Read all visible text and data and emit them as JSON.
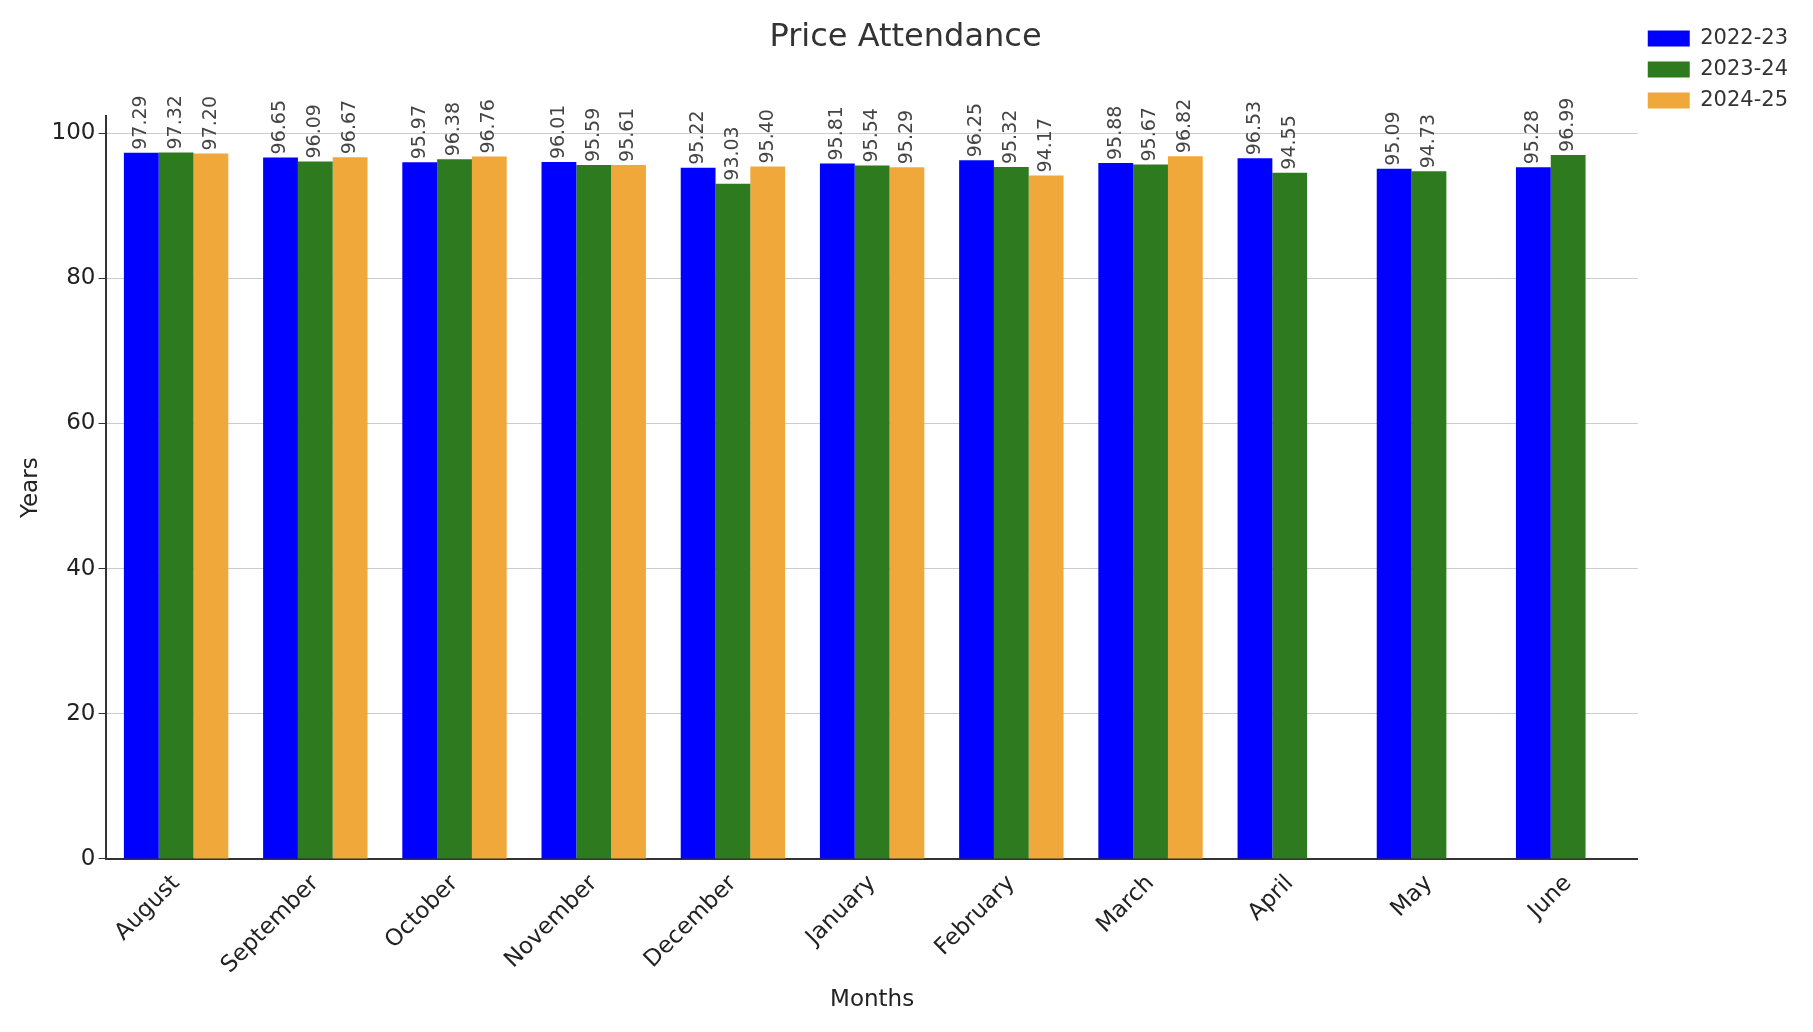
{
  "chart_data": {
    "type": "bar",
    "title": "Price Attendance",
    "xlabel": "Months",
    "ylabel": "Years",
    "categories": [
      "August",
      "September",
      "October",
      "November",
      "December",
      "January",
      "February",
      "March",
      "April",
      "May",
      "June"
    ],
    "series": [
      {
        "name": "2022-23",
        "color": "#0000ff",
        "values": [
          97.29,
          96.65,
          95.97,
          96.01,
          95.22,
          95.81,
          96.25,
          95.88,
          96.53,
          95.09,
          95.28
        ],
        "value_labels": [
          "97.29",
          "96.65",
          "95.97",
          "96.01",
          "95.22",
          "95.81",
          "96.25",
          "95.88",
          "96.53",
          "95.09",
          "95.28"
        ]
      },
      {
        "name": "2023-24",
        "color": "#2e7a1e",
        "values": [
          97.32,
          96.09,
          96.38,
          95.59,
          93.03,
          95.54,
          95.32,
          95.67,
          94.55,
          94.73,
          96.99
        ],
        "value_labels": [
          "97.32",
          "96.09",
          "96.38",
          "95.59",
          "93.03",
          "95.54",
          "95.32",
          "95.67",
          "94.55",
          "94.73",
          "96.99"
        ]
      },
      {
        "name": "2024-25",
        "color": "#f0a83a",
        "values": [
          97.2,
          96.67,
          96.76,
          95.61,
          95.4,
          95.29,
          94.17,
          96.82,
          null,
          null,
          null
        ],
        "value_labels": [
          "97.20",
          "96.67",
          "96.76",
          "95.61",
          "95.40",
          "95.29",
          "94.17",
          "96.82",
          null,
          null,
          null
        ]
      }
    ],
    "ylim": [
      0,
      102.3
    ],
    "yticks": [
      0,
      20,
      40,
      60,
      80,
      100
    ],
    "grid": "y",
    "legend": "top right"
  }
}
